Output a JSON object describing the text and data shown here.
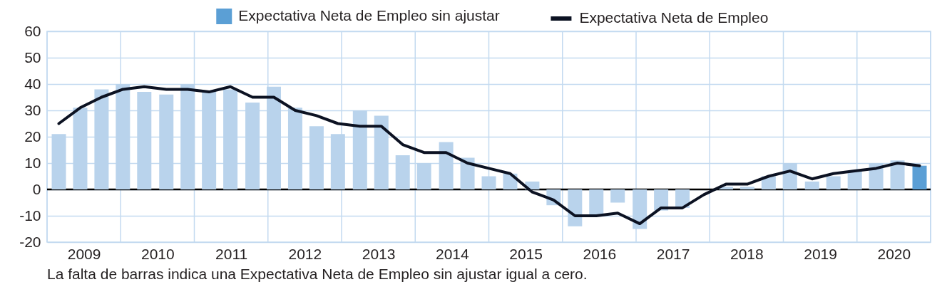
{
  "chart_data": {
    "type": "bar",
    "x": [
      2008.66,
      2008.95,
      2009.24,
      2009.53,
      2009.82,
      2010.12,
      2010.41,
      2010.7,
      2010.99,
      2011.29,
      2011.58,
      2011.87,
      2012.16,
      2012.45,
      2012.75,
      2013.04,
      2013.33,
      2013.62,
      2013.92,
      2014.21,
      2014.5,
      2014.79,
      2015.09,
      2015.38,
      2015.67,
      2015.96,
      2016.25,
      2016.55,
      2016.84,
      2017.13,
      2017.42,
      2017.72,
      2018.01,
      2018.3,
      2018.59,
      2018.89,
      2019.18,
      2019.47,
      2019.76,
      2020.05,
      2020.35
    ],
    "xlim": [
      2008.5,
      2020.5
    ],
    "xticks": [
      {
        "value": 2008.5,
        "label": null
      },
      2009,
      {
        "value": 2009.5,
        "label": null
      },
      2010,
      {
        "value": 2010.5,
        "label": null
      },
      2011,
      {
        "value": 2011.5,
        "label": null
      },
      2012,
      {
        "value": 2012.5,
        "label": null
      },
      2013,
      {
        "value": 2013.5,
        "label": null
      },
      2014,
      {
        "value": 2014.5,
        "label": null
      },
      2015,
      {
        "value": 2015.5,
        "label": null
      },
      2016,
      {
        "value": 2016.5,
        "label": null
      },
      2017,
      {
        "value": 2017.5,
        "label": null
      },
      2018,
      {
        "value": 2018.5,
        "label": null
      },
      2019,
      {
        "value": 2019.5,
        "label": null
      },
      2020,
      {
        "value": 2020.5,
        "label": null
      }
    ],
    "ylim": [
      -20,
      60
    ],
    "yticks": [
      -20,
      -10,
      0,
      10,
      20,
      30,
      40,
      50,
      60
    ],
    "series": [
      {
        "name": "Expectativa Neta de Empleo sin ajustar",
        "color": "#5b9fd5",
        "colors": [
          "#b9d3ec",
          "#b9d3ec",
          "#b9d3ec",
          "#b9d3ec",
          "#b9d3ec",
          "#b9d3ec",
          "#b9d3ec",
          "#b9d3ec",
          "#b9d3ec",
          "#b9d3ec",
          "#b9d3ec",
          "#b9d3ec",
          "#b9d3ec",
          "#b9d3ec",
          "#b9d3ec",
          "#b9d3ec",
          "#b9d3ec",
          "#b9d3ec",
          "#b9d3ec",
          "#b9d3ec",
          "#b9d3ec",
          "#b9d3ec",
          "#b9d3ec",
          "#b9d3ec",
          "#b9d3ec",
          "#b9d3ec",
          "#b9d3ec",
          "#b9d3ec",
          "#b9d3ec",
          "#b9d3ec",
          "#b9d3ec",
          "#b9d3ec",
          "#b9d3ec",
          "#b9d3ec",
          "#b9d3ec",
          "#b9d3ec",
          "#b9d3ec",
          "#b9d3ec",
          "#b9d3ec",
          "#b9d3ec",
          "#5b9fd5"
        ],
        "values": [
          21,
          31,
          38,
          40,
          37,
          36,
          40,
          37,
          38,
          33,
          39,
          31,
          24,
          21,
          30,
          28,
          13,
          10,
          18,
          12,
          5,
          6,
          3,
          -6,
          -14,
          -10,
          -5,
          -15,
          -8,
          -7,
          0,
          1,
          1,
          5,
          10,
          3,
          5,
          7,
          10,
          11,
          9
        ]
      },
      {
        "name": "Expectativa Neta de Empleo",
        "type": "line",
        "color": "#0c1222",
        "values": [
          25,
          31,
          35,
          38,
          39,
          38,
          38,
          37,
          39,
          35,
          35,
          30,
          28,
          25,
          24,
          24,
          17,
          14,
          14,
          10,
          8,
          6,
          -1,
          -4,
          -10,
          -10,
          -9,
          -13,
          -7,
          -7,
          -2,
          2,
          2,
          5,
          7,
          4,
          6,
          7,
          8,
          10,
          9
        ]
      }
    ],
    "ref_lines": [
      {
        "axis": "y",
        "value": 0,
        "color": "#000000"
      }
    ],
    "grid": true,
    "legend": "top",
    "annotations": [
      "La falta de barras indica una Expectativa Neta de Empleo sin ajustar igual a cero."
    ]
  }
}
